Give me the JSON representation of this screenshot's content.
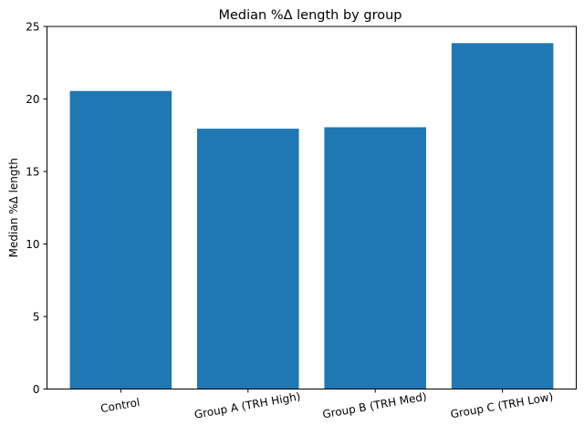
{
  "colors": {
    "bar": "#1f77b4",
    "axis": "#000000",
    "background": "#ffffff"
  },
  "chart_data": {
    "type": "bar",
    "title": "Median %Δ length by group",
    "xlabel": "",
    "ylabel": "Median %Δ length",
    "categories": [
      "Control",
      "Group A (TRH High)",
      "Group B (TRH Med)",
      "Group C (TRH Low)"
    ],
    "values": [
      20.55,
      17.95,
      18.05,
      23.85
    ],
    "ylim": [
      0,
      25
    ],
    "yticks": [
      0,
      5,
      10,
      15,
      20,
      25
    ],
    "ytick_labels": [
      "0",
      "5",
      "10",
      "15",
      "20",
      "25"
    ],
    "grid": false,
    "legend": "none",
    "xtick_rotation_deg": 10
  }
}
